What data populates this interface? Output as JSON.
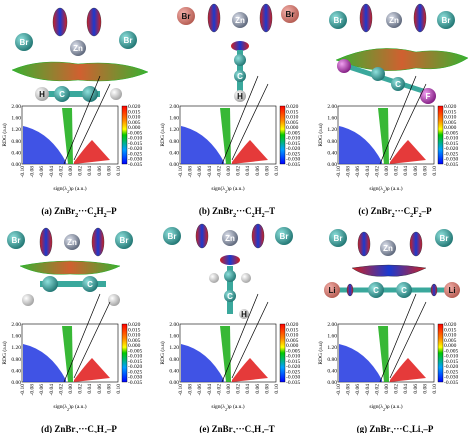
{
  "panels": [
    {
      "id": "a",
      "caption_prefix": "(a) ZnBr",
      "caption_sub1": "2",
      "caption_mid": "···C",
      "caption_sub2": "2",
      "caption_end": "H",
      "caption_sub3": "2",
      "caption_tail": "–P",
      "atoms": [
        "Br",
        "Zn",
        "Br",
        "C",
        "H"
      ]
    },
    {
      "id": "b",
      "caption_prefix": "(b) ZnBr",
      "caption_sub1": "2",
      "caption_mid": "···C",
      "caption_sub2": "2",
      "caption_end": "H",
      "caption_sub3": "2",
      "caption_tail": "–T",
      "atoms": [
        "Br",
        "Zn",
        "Br",
        "C",
        "H"
      ]
    },
    {
      "id": "c",
      "caption_prefix": "(c) ZnBr",
      "caption_sub1": "2",
      "caption_mid": "···C",
      "caption_sub2": "2",
      "caption_end": "F",
      "caption_sub3": "2",
      "caption_tail": "–P",
      "atoms": [
        "Br",
        "Zn",
        "Br",
        "C",
        "F"
      ]
    },
    {
      "id": "d",
      "caption_prefix": "(d) ZnBr",
      "caption_sub1": "2",
      "caption_mid": "···C",
      "caption_sub2": "2",
      "caption_end": "H",
      "caption_sub3": "4",
      "caption_tail": "–P",
      "atoms": [
        "Br",
        "Zn",
        "Br",
        "C"
      ]
    },
    {
      "id": "e",
      "caption_prefix": "(e) ZnBr",
      "caption_sub1": "2",
      "caption_mid": "···C",
      "caption_sub2": "2",
      "caption_end": "H",
      "caption_sub3": "4",
      "caption_tail": "–T",
      "atoms": [
        "Br",
        "Zn",
        "Br",
        "C",
        "H"
      ]
    },
    {
      "id": "g",
      "caption_prefix": "(g) ZnBr",
      "caption_sub1": "2",
      "caption_mid": "···C",
      "caption_sub2": "2",
      "caption_end": "Li",
      "caption_sub3": "2",
      "caption_tail": "–P",
      "atoms": [
        "Br",
        "Zn",
        "Br",
        "Li",
        "C",
        "C",
        "Li"
      ]
    }
  ],
  "axes": {
    "ylabel": "RDG (a.u)",
    "xlabel": "sign(λ",
    "xlabel_sub": "2",
    "xlabel_end": ")ρ (a.u.)",
    "y_ticks": [
      "2.00",
      "1.60",
      "1.20",
      "0.80",
      "0.40",
      "0.00"
    ],
    "x_ticks": [
      "-0.10",
      "-0.08",
      "-0.06",
      "-0.04",
      "-0.02",
      "0.00",
      "0.02",
      "0.04",
      "0.06",
      "0.08",
      "0.10"
    ]
  },
  "colorbar": {
    "ticks": [
      "0.020",
      "0.015",
      "0.010",
      "0.005",
      "0.000",
      "-0.005",
      "-0.010",
      "-0.015",
      "-0.020",
      "-0.025",
      "-0.030",
      "-0.035"
    ],
    "colors": [
      "#ff0000",
      "#ffff00",
      "#00c800",
      "#00c8ff",
      "#0000ff"
    ]
  },
  "colors": {
    "zn": "#8a93a8",
    "br": "#35a09c",
    "c": "#3aa89c",
    "h": "#f2f2f2",
    "f": "#c838c8",
    "li": "#e59a8c",
    "surface_blue": "#1e46d8",
    "surface_red": "#e02020",
    "surface_green": "#58c030",
    "surface_orange": "#e07830"
  }
}
